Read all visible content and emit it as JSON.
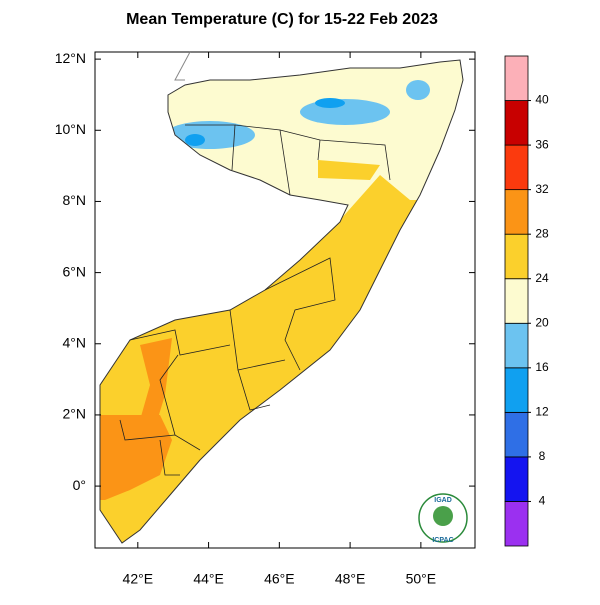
{
  "title": "Mean Temperature (C) for 15-22 Feb 2023",
  "map": {
    "xlim": [
      40.79,
      51.53
    ],
    "ylim": [
      -1.74,
      12.2
    ],
    "xticks": [
      {
        "value": 42,
        "label": "42°E"
      },
      {
        "value": 44,
        "label": "44°E"
      },
      {
        "value": 46,
        "label": "46°E"
      },
      {
        "value": 48,
        "label": "48°E"
      },
      {
        "value": 50,
        "label": "50°E"
      }
    ],
    "yticks": [
      {
        "value": 12,
        "label": "12°N"
      },
      {
        "value": 10,
        "label": "10°N"
      },
      {
        "value": 8,
        "label": "8°N"
      },
      {
        "value": 6,
        "label": "6°N"
      },
      {
        "value": 4,
        "label": "4°N"
      },
      {
        "value": 2,
        "label": "2°N"
      },
      {
        "value": 0,
        "label": "0°"
      }
    ]
  },
  "colorbar": {
    "ticks": [
      4,
      8,
      12,
      16,
      20,
      24,
      28,
      32,
      36,
      40
    ],
    "colors": [
      "#9b30f0",
      "#1414f0",
      "#2f6fe6",
      "#10a0f0",
      "#6cc3f0",
      "#fdfbd0",
      "#fbd02c",
      "#fb9416",
      "#fb3a0e",
      "#c80000",
      "#fcb0b8"
    ]
  },
  "logo": {
    "top": "IGAD",
    "bottom": "ICPAC"
  }
}
